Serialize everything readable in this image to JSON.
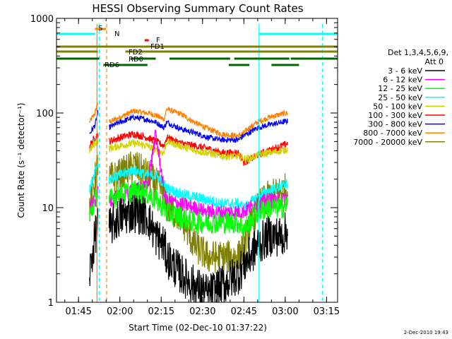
{
  "chart_data": {
    "type": "line",
    "title": "HESSI Observing Summary Count Rates",
    "xlabel": "Start Time (02-Dec-10 01:37:22)",
    "ylabel": "Count Rate (s⁻¹ detector⁻¹)",
    "yscale": "log",
    "ylim": [
      1,
      1000
    ],
    "xlim_minutes_after_0137": [
      0,
      102
    ],
    "x_ticks": [
      {
        "label": "01:45",
        "t": 8
      },
      {
        "label": "02:00",
        "t": 23
      },
      {
        "label": "02:15",
        "t": 38
      },
      {
        "label": "02:30",
        "t": 53
      },
      {
        "label": "02:45",
        "t": 68
      },
      {
        "label": "03:00",
        "t": 83
      },
      {
        "label": "03:15",
        "t": 98
      }
    ],
    "y_ticks": [
      {
        "label": "1",
        "v": 1
      },
      {
        "label": "10",
        "v": 10
      },
      {
        "label": "100",
        "v": 100
      },
      {
        "label": "1000",
        "v": 1000
      }
    ],
    "legend": {
      "placement": "right",
      "header": [
        "Det 1,3,4,5,6,9,",
        "Att 0"
      ],
      "entries": [
        {
          "label": "3 - 6 keV",
          "color": "#000000"
        },
        {
          "label": "6 - 12 keV",
          "color": "#ff00ff"
        },
        {
          "label": "12 - 25 keV",
          "color": "#00ff00"
        },
        {
          "label": "25 - 50 keV",
          "color": "#00ffff"
        },
        {
          "label": "50 - 100 keV",
          "color": "#d2d200"
        },
        {
          "label": "100 - 300 keV",
          "color": "#ff0000"
        },
        {
          "label": "300 - 800 keV",
          "color": "#0000ff"
        },
        {
          "label": "800 - 7000 keV",
          "color": "#ff8000"
        },
        {
          "label": "7000 - 20000 keV",
          "color": "#808000"
        }
      ]
    },
    "flag_bars": [
      {
        "label": "S",
        "color": "#ff8000",
        "segments": [
          [
            14,
            18
          ]
        ],
        "level": 1
      },
      {
        "label": "N",
        "color": "#00ffff",
        "segments": [
          [
            0,
            14
          ],
          [
            73.5,
            102
          ]
        ],
        "level": 2
      },
      {
        "label": "F",
        "color": "#ff0000",
        "segments": [
          [
            32,
            33.5
          ]
        ],
        "level": 3
      },
      {
        "label": "FD1",
        "color": "#808000",
        "segments": [
          [
            0,
            102
          ]
        ],
        "level": 4
      },
      {
        "label": "FD2",
        "color": "#808000",
        "segments": [
          [
            0,
            15
          ],
          [
            25,
            102
          ]
        ],
        "level": 5
      },
      {
        "label": "RD0",
        "color": "#006400",
        "segments": [
          [
            0,
            15.5
          ],
          [
            27,
            36
          ],
          [
            41,
            63
          ],
          [
            64.5,
            84.5
          ],
          [
            85,
            102
          ]
        ],
        "level": 6
      },
      {
        "label": "RD6",
        "color": "#006400",
        "segments": [
          [
            17,
            28
          ],
          [
            25.5,
            33
          ],
          [
            62.5,
            70
          ],
          [
            78,
            88
          ]
        ],
        "level": 7
      }
    ],
    "vertical_markers": [
      {
        "t": 14.7,
        "color": "#ff8000",
        "style": "solid"
      },
      {
        "t": 15.5,
        "color": "#00ffff",
        "style": "dashed"
      },
      {
        "t": 18.2,
        "color": "#ff8000",
        "style": "dashed"
      },
      {
        "t": 73.5,
        "color": "#00ffff",
        "style": "solid"
      },
      {
        "t": 96.5,
        "color": "#00ffff",
        "style": "dashed"
      }
    ],
    "series": [
      {
        "label": "800 - 7000 keV",
        "color": "#ff8000",
        "base": 80,
        "noise": 0.03,
        "points": [
          [
            12,
            80
          ],
          [
            14,
            100
          ],
          [
            15,
            130
          ],
          [
            16,
            0
          ],
          [
            19,
            80
          ],
          [
            23,
            90
          ],
          [
            28,
            105
          ],
          [
            33,
            100
          ],
          [
            36,
            95
          ],
          [
            39,
            85
          ],
          [
            40,
            110
          ],
          [
            45,
            98
          ],
          [
            50,
            80
          ],
          [
            55,
            68
          ],
          [
            60,
            60
          ],
          [
            66,
            57
          ],
          [
            68,
            62
          ],
          [
            70,
            70
          ],
          [
            73,
            80
          ],
          [
            77,
            90
          ],
          [
            82,
            98
          ],
          [
            84,
            100
          ]
        ]
      },
      {
        "label": "300 - 800 keV",
        "color": "#0000ff",
        "base": 65,
        "noise": 0.03,
        "points": [
          [
            12,
            60
          ],
          [
            14,
            75
          ],
          [
            15,
            100
          ],
          [
            16,
            0
          ],
          [
            19,
            70
          ],
          [
            23,
            80
          ],
          [
            28,
            90
          ],
          [
            33,
            85
          ],
          [
            36,
            80
          ],
          [
            39,
            70
          ],
          [
            40,
            80
          ],
          [
            45,
            68
          ],
          [
            50,
            62
          ],
          [
            55,
            55
          ],
          [
            60,
            52
          ],
          [
            66,
            52
          ],
          [
            68,
            58
          ],
          [
            70,
            62
          ],
          [
            73,
            70
          ],
          [
            77,
            75
          ],
          [
            82,
            80
          ],
          [
            84,
            82
          ]
        ]
      },
      {
        "label": "100 - 300 keV",
        "color": "#ff0000",
        "base": 45,
        "noise": 0.04,
        "points": [
          [
            12,
            45
          ],
          [
            14,
            55
          ],
          [
            15,
            60
          ],
          [
            16,
            0
          ],
          [
            19,
            50
          ],
          [
            23,
            55
          ],
          [
            28,
            60
          ],
          [
            33,
            55
          ],
          [
            36,
            50
          ],
          [
            39,
            45
          ],
          [
            40,
            55
          ],
          [
            45,
            48
          ],
          [
            50,
            45
          ],
          [
            55,
            42
          ],
          [
            60,
            38
          ],
          [
            66,
            38
          ],
          [
            68,
            30
          ],
          [
            70,
            32
          ],
          [
            73,
            36
          ],
          [
            77,
            40
          ],
          [
            82,
            45
          ],
          [
            84,
            48
          ]
        ]
      },
      {
        "label": "50 - 100 keV",
        "color": "#d2d200",
        "base": 40,
        "noise": 0.04,
        "points": [
          [
            12,
            40
          ],
          [
            14,
            48
          ],
          [
            15,
            50
          ],
          [
            16,
            0
          ],
          [
            19,
            42
          ],
          [
            23,
            45
          ],
          [
            28,
            48
          ],
          [
            33,
            45
          ],
          [
            36,
            40
          ],
          [
            39,
            38
          ],
          [
            40,
            50
          ],
          [
            45,
            45
          ],
          [
            50,
            40
          ],
          [
            55,
            38
          ],
          [
            60,
            35
          ],
          [
            66,
            35
          ],
          [
            68,
            33
          ],
          [
            70,
            33
          ],
          [
            73,
            36
          ],
          [
            77,
            38
          ],
          [
            82,
            40
          ],
          [
            84,
            42
          ]
        ]
      },
      {
        "label": "7000 - 20000 keV",
        "color": "#808000",
        "base": 15,
        "noise": 0.18,
        "points": [
          [
            12,
            10
          ],
          [
            14,
            20
          ],
          [
            15,
            30
          ],
          [
            16,
            0
          ],
          [
            19,
            20
          ],
          [
            23,
            22
          ],
          [
            28,
            28
          ],
          [
            33,
            22
          ],
          [
            36,
            18
          ],
          [
            39,
            15
          ],
          [
            40,
            10
          ],
          [
            45,
            8
          ],
          [
            50,
            4
          ],
          [
            55,
            3
          ],
          [
            60,
            3
          ],
          [
            66,
            3
          ],
          [
            68,
            4
          ],
          [
            70,
            6
          ],
          [
            73,
            10
          ],
          [
            77,
            13
          ],
          [
            82,
            15
          ],
          [
            84,
            16
          ]
        ]
      },
      {
        "label": "25 - 50 keV",
        "color": "#00ffff",
        "base": 18,
        "noise": 0.06,
        "points": [
          [
            12,
            15
          ],
          [
            14,
            25
          ],
          [
            15,
            30
          ],
          [
            16,
            0
          ],
          [
            19,
            20
          ],
          [
            23,
            22
          ],
          [
            28,
            25
          ],
          [
            33,
            22
          ],
          [
            36,
            22
          ],
          [
            39,
            18
          ],
          [
            40,
            16
          ],
          [
            45,
            14
          ],
          [
            50,
            13
          ],
          [
            55,
            12
          ],
          [
            60,
            11
          ],
          [
            66,
            11
          ],
          [
            68,
            10
          ],
          [
            70,
            11
          ],
          [
            73,
            13
          ],
          [
            77,
            15
          ],
          [
            82,
            17
          ],
          [
            84,
            18
          ]
        ]
      },
      {
        "label": "6 - 12 keV",
        "color": "#ff00ff",
        "base": 12,
        "noise": 0.08,
        "points": [
          [
            12,
            10
          ],
          [
            14,
            12
          ],
          [
            15,
            14
          ],
          [
            16,
            0
          ],
          [
            19,
            12
          ],
          [
            23,
            13
          ],
          [
            28,
            15
          ],
          [
            33,
            17
          ],
          [
            36,
            60
          ],
          [
            38,
            25
          ],
          [
            39,
            14
          ],
          [
            40,
            12
          ],
          [
            45,
            11
          ],
          [
            50,
            10
          ],
          [
            55,
            9
          ],
          [
            60,
            9
          ],
          [
            66,
            9
          ],
          [
            68,
            9
          ],
          [
            70,
            10
          ],
          [
            73,
            11
          ],
          [
            77,
            12
          ],
          [
            82,
            12
          ],
          [
            84,
            13
          ]
        ]
      },
      {
        "label": "12 - 25 keV",
        "color": "#00ff00",
        "base": 12,
        "noise": 0.12,
        "points": [
          [
            12,
            8
          ],
          [
            14,
            12
          ],
          [
            15,
            15
          ],
          [
            16,
            0
          ],
          [
            19,
            12
          ],
          [
            23,
            14
          ],
          [
            28,
            15
          ],
          [
            33,
            14
          ],
          [
            36,
            12
          ],
          [
            39,
            10
          ],
          [
            40,
            9
          ],
          [
            45,
            8
          ],
          [
            50,
            7
          ],
          [
            55,
            7
          ],
          [
            60,
            7
          ],
          [
            66,
            7
          ],
          [
            68,
            6
          ],
          [
            70,
            7
          ],
          [
            73,
            9
          ],
          [
            77,
            10
          ],
          [
            82,
            10
          ],
          [
            84,
            11
          ]
        ]
      },
      {
        "label": "3 - 6 keV",
        "color": "#000000",
        "base": 8,
        "noise": 0.22,
        "points": [
          [
            12,
            2
          ],
          [
            14,
            5
          ],
          [
            15,
            7
          ],
          [
            16,
            0
          ],
          [
            19,
            6
          ],
          [
            23,
            8
          ],
          [
            28,
            9
          ],
          [
            33,
            8
          ],
          [
            36,
            5
          ],
          [
            39,
            4
          ],
          [
            40,
            3
          ],
          [
            45,
            2
          ],
          [
            50,
            1.5
          ],
          [
            55,
            1.2
          ],
          [
            60,
            1.5
          ],
          [
            66,
            2
          ],
          [
            68,
            2.5
          ],
          [
            70,
            3
          ],
          [
            73,
            4
          ],
          [
            77,
            5
          ],
          [
            82,
            5
          ],
          [
            84,
            6
          ]
        ]
      }
    ],
    "grid": false
  },
  "flag_labels": {
    "S": "S",
    "N": "N",
    "F": "F",
    "FD1": "FD1",
    "FD2": "FD2",
    "RD0": "RD0",
    "RD6": "RD6"
  },
  "timestamp": "2-Dec-2010 19:43"
}
